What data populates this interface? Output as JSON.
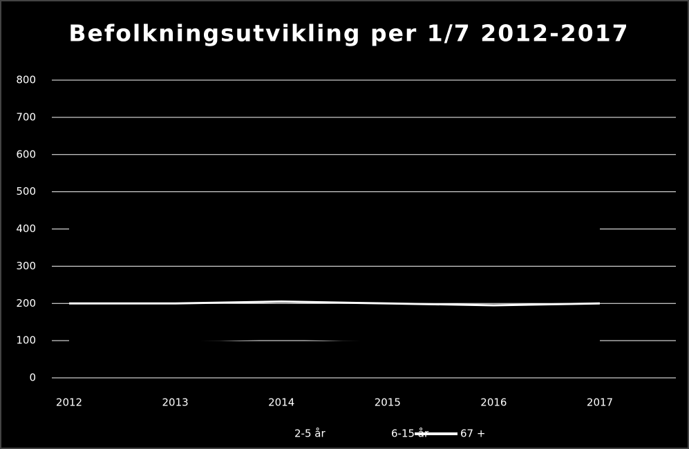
{
  "chart_data": {
    "type": "line",
    "title": "Befolkningsutvikling per 1/7 2012-2017",
    "categories": [
      "2012",
      "2013",
      "2014",
      "2015",
      "2016",
      "2017"
    ],
    "series": [
      {
        "name": "2-5 år",
        "color": "#000000",
        "values": [
          100,
          100,
          105,
          100,
          100,
          100
        ]
      },
      {
        "name": "6-15 år",
        "color": "#000000",
        "values": [
          400,
          400,
          400,
          400,
          400,
          400
        ]
      },
      {
        "name": "67 +",
        "color": "#ffffff",
        "values": [
          200,
          200,
          205,
          200,
          195,
          200
        ]
      }
    ],
    "ylim": [
      0,
      800
    ],
    "yticks": [
      0,
      100,
      200,
      300,
      400,
      500,
      600,
      700,
      800
    ],
    "grid": true,
    "legend": "bottom"
  }
}
